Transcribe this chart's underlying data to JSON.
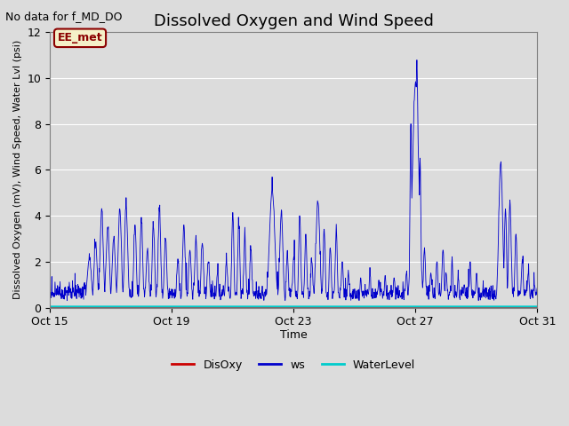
{
  "title": "Dissolved Oxygen and Wind Speed",
  "subtitle": "No data for f_MD_DO",
  "ylabel": "Dissolved Oxygen (mV), Wind Speed, Water Lvl (psi)",
  "xlabel": "Time",
  "annotation": "EE_met",
  "fig_facecolor": "#dcdcdc",
  "ax_facecolor": "#dcdcdc",
  "ylim": [
    0,
    12
  ],
  "yticks": [
    0,
    2,
    4,
    6,
    8,
    10,
    12
  ],
  "xtick_labels": [
    "Oct 15",
    "Oct 19",
    "Oct 23",
    "Oct 27",
    "Oct 31"
  ],
  "xtick_positions": [
    0,
    4,
    8,
    12,
    16
  ],
  "xlim": [
    0,
    16
  ],
  "ws_color": "#0000cc",
  "disoxy_color": "#cc0000",
  "waterlevel_color": "#00cccc",
  "legend_labels": [
    "DisOxy",
    "ws",
    "WaterLevel"
  ],
  "legend_colors": [
    "#cc0000",
    "#0000cc",
    "#00cccc"
  ],
  "title_fontsize": 13,
  "label_fontsize": 8,
  "tick_fontsize": 9
}
